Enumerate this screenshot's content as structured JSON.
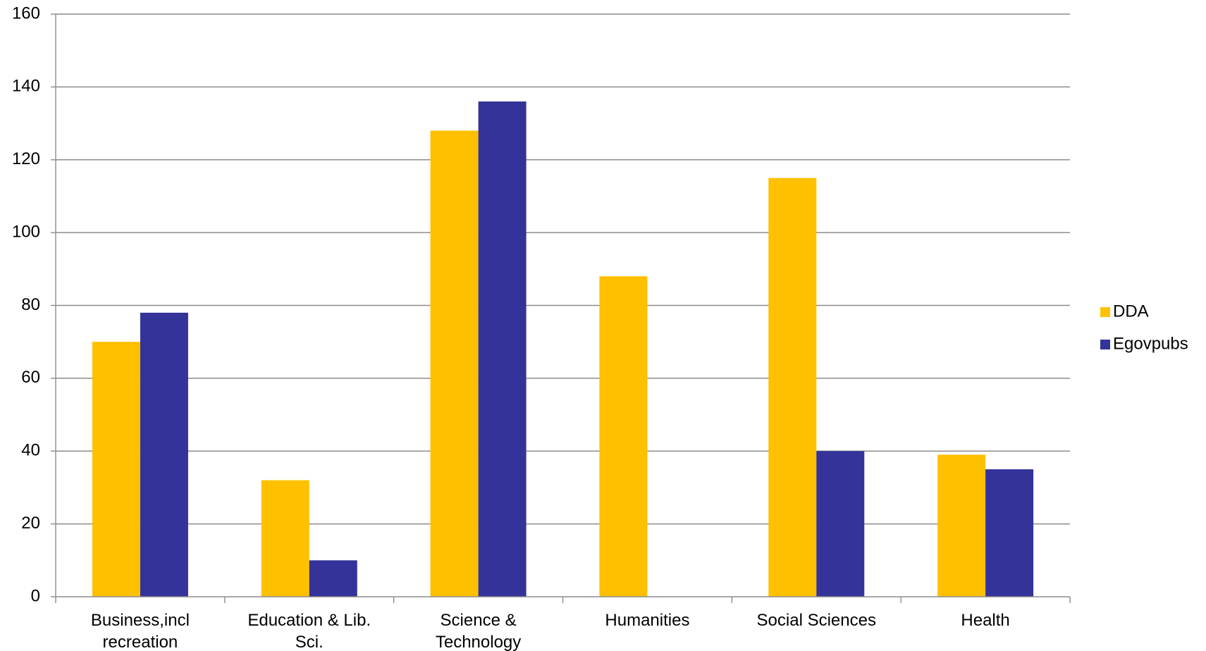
{
  "chart_data": {
    "type": "bar",
    "title": "",
    "xlabel": "",
    "ylabel": "",
    "categories": [
      [
        "Business,incl",
        "recreation"
      ],
      [
        "Education & Lib.",
        "Sci."
      ],
      [
        "Science &",
        "Technology"
      ],
      [
        "Humanities"
      ],
      [
        "Social Sciences"
      ],
      [
        "Health"
      ]
    ],
    "series": [
      {
        "name": "DDA",
        "color": "#FFC000",
        "values": [
          70,
          32,
          128,
          88,
          115,
          39
        ]
      },
      {
        "name": "Egovpubs",
        "color": "#333399",
        "values": [
          78,
          10,
          136,
          0,
          40,
          35
        ]
      }
    ],
    "ylim": [
      0,
      160
    ],
    "yticks": [
      0,
      20,
      40,
      60,
      80,
      100,
      120,
      140,
      160
    ],
    "grid": true,
    "legend_position": "right"
  }
}
